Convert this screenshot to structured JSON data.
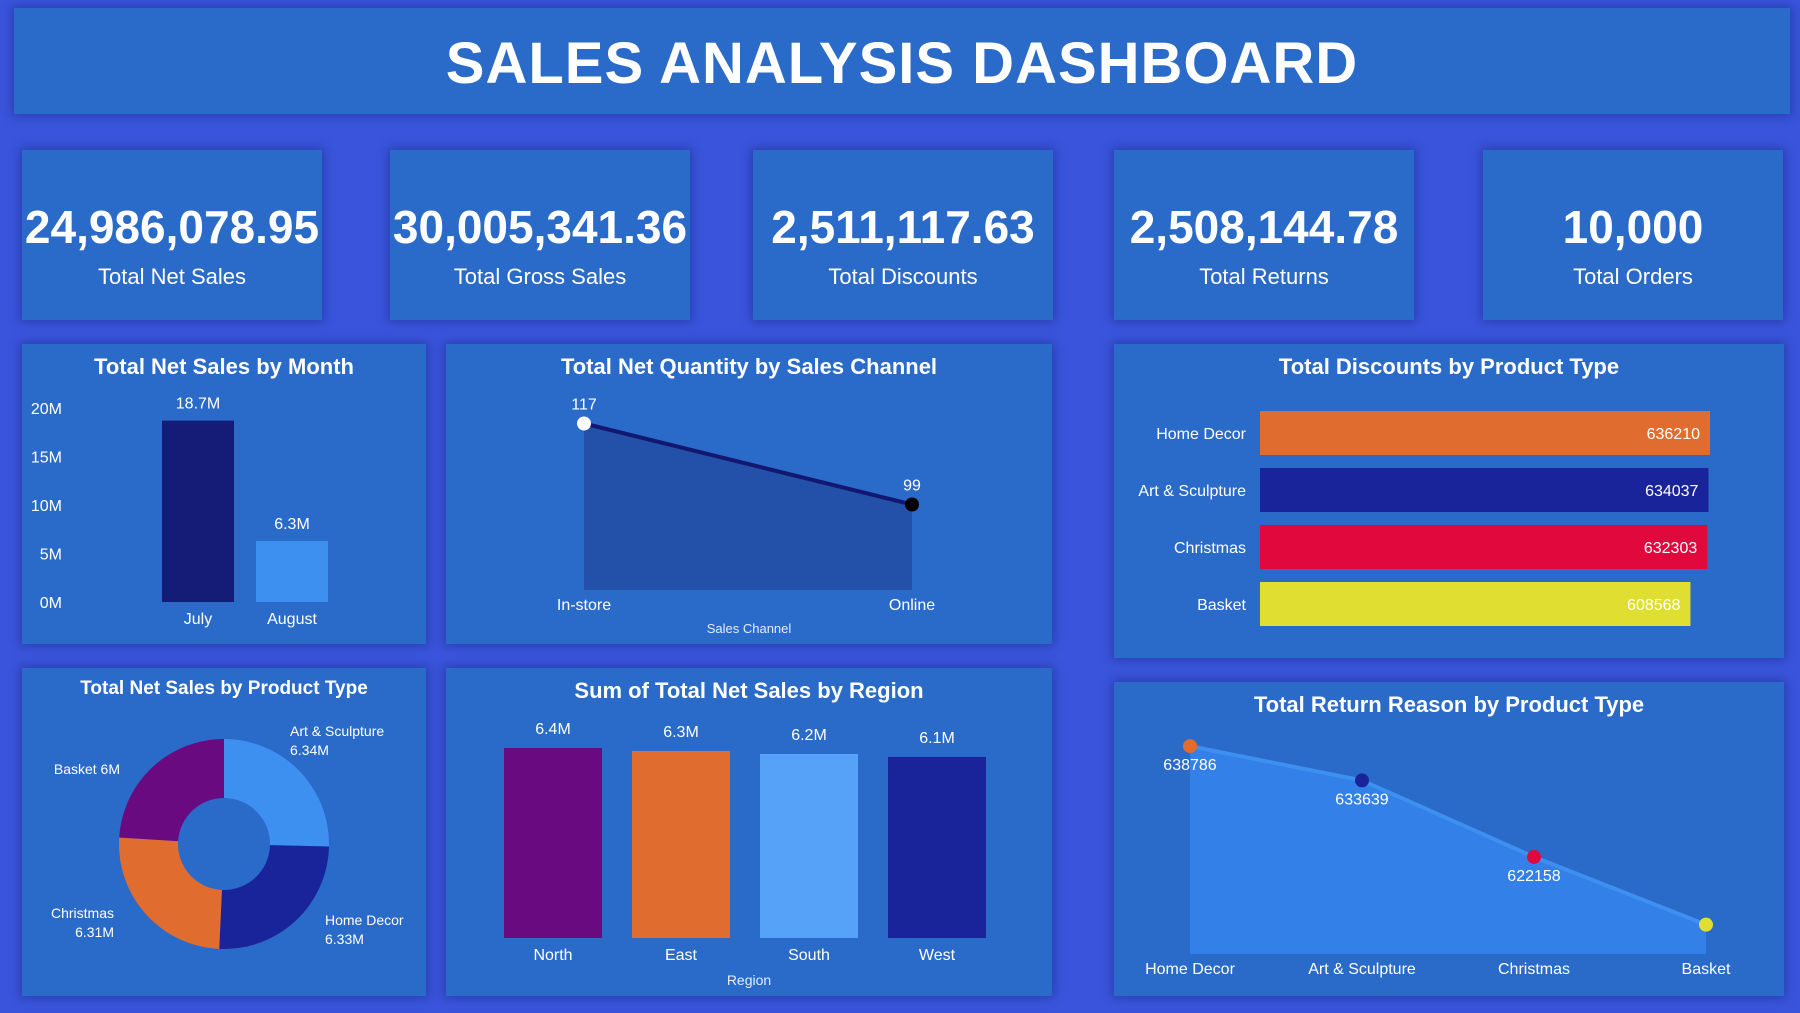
{
  "header": {
    "title": "SALES ANALYSIS DASHBOARD"
  },
  "kpis": [
    {
      "value": "24,986,078.95",
      "label": "Total Net Sales"
    },
    {
      "value": "30,005,341.36",
      "label": "Total Gross Sales"
    },
    {
      "value": "2,511,117.63",
      "label": "Total Discounts"
    },
    {
      "value": "2,508,144.78",
      "label": "Total Returns"
    },
    {
      "value": "10,000",
      "label": "Total Orders"
    }
  ],
  "chart_data": [
    {
      "id": "net_sales_month",
      "type": "bar",
      "title": "Total Net Sales by Month",
      "categories": [
        "July",
        "August"
      ],
      "values": [
        18.7,
        6.3
      ],
      "value_labels": [
        "18.7M",
        "6.3M"
      ],
      "yticks": [
        "0M",
        "5M",
        "10M",
        "15M",
        "20M"
      ],
      "ylim": [
        0,
        20
      ],
      "colors": [
        "#141c78",
        "#3d8ff0"
      ]
    },
    {
      "id": "qty_channel",
      "type": "area",
      "title": "Total Net Quantity by Sales Channel",
      "categories": [
        "In-store",
        "Online"
      ],
      "values": [
        117,
        99
      ],
      "xlabel": "Sales Channel",
      "ylim": [
        80,
        120
      ],
      "colors": {
        "fill": "#2350a8",
        "line": "#121870",
        "points": [
          "#ffffff",
          "#000000"
        ]
      }
    },
    {
      "id": "discounts_product",
      "type": "bar",
      "orientation": "horizontal",
      "title": "Total Discounts by Product Type",
      "categories": [
        "Home Decor",
        "Art & Sculpture",
        "Christmas",
        "Basket"
      ],
      "values": [
        636210,
        634037,
        632303,
        608568
      ],
      "xlim": [
        0,
        636210
      ],
      "colors": [
        "#e06c30",
        "#1a249a",
        "#e0083c",
        "#e0de30"
      ]
    },
    {
      "id": "net_sales_product",
      "type": "pie",
      "style": "donut",
      "title": "Total Net Sales by Product Type",
      "categories": [
        "Art & Sculpture",
        "Home Decor",
        "Christmas",
        "Basket"
      ],
      "values": [
        6.34,
        6.33,
        6.31,
        6.0
      ],
      "value_labels": [
        "6.34M",
        "6.33M",
        "6.31M",
        "6M"
      ],
      "colors": [
        "#3d8ff0",
        "#1a249a",
        "#e06c30",
        "#6a0a80"
      ]
    },
    {
      "id": "net_sales_region",
      "type": "bar",
      "title": "Sum of Total Net Sales by Region",
      "categories": [
        "North",
        "East",
        "South",
        "West"
      ],
      "values": [
        6.4,
        6.3,
        6.2,
        6.1
      ],
      "value_labels": [
        "6.4M",
        "6.3M",
        "6.2M",
        "6.1M"
      ],
      "xlabel": "Region",
      "ylim": [
        0,
        6.4
      ],
      "colors": [
        "#6a0a80",
        "#e06c30",
        "#56a2f8",
        "#1a249a"
      ]
    },
    {
      "id": "return_reason_product",
      "type": "area",
      "title": "Total Return Reason by Product Type",
      "categories": [
        "Home Decor",
        "Art & Sculpture",
        "Christmas",
        "Basket"
      ],
      "values": [
        638786,
        633639,
        622158,
        612000
      ],
      "value_labels": [
        "638786",
        "633639",
        "622158",
        ""
      ],
      "ylim": [
        610000,
        640000
      ],
      "colors": {
        "fill": "#3380e8",
        "line": "#3d8ff0",
        "points": [
          "#e06c30",
          "#1a249a",
          "#e0083c",
          "#e0de30"
        ]
      }
    }
  ]
}
